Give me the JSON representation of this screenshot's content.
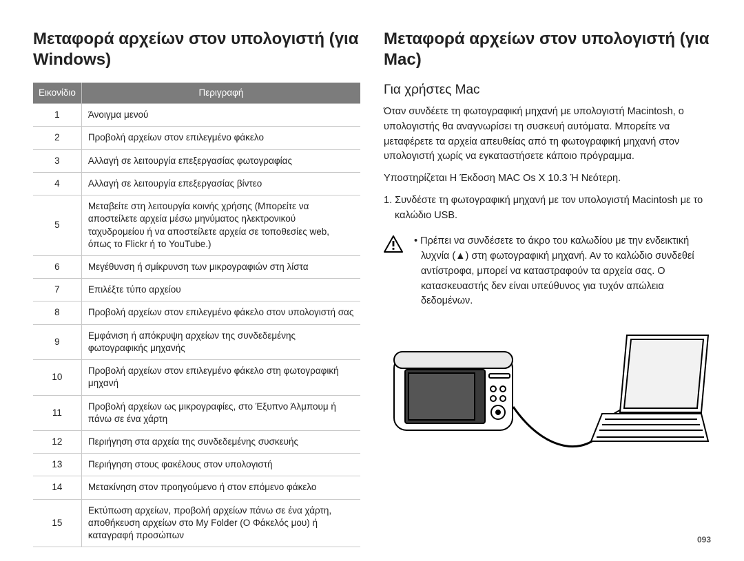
{
  "page_number": "093",
  "left": {
    "heading": "Μεταφορά αρχείων στον υπολογιστή (για Windows)",
    "table": {
      "headers": {
        "icon": "Εικονίδιο",
        "desc": "Περιγραφή"
      },
      "rows": [
        {
          "n": "1",
          "d": "Άνοιγμα μενού"
        },
        {
          "n": "2",
          "d": "Προβολή αρχείων στον επιλεγμένο φάκελο"
        },
        {
          "n": "3",
          "d": "Αλλαγή σε λειτουργία επεξεργασίας φωτογραφίας"
        },
        {
          "n": "4",
          "d": "Αλλαγή σε λειτουργία επεξεργασίας βίντεο"
        },
        {
          "n": "5",
          "d": "Μεταβείτε στη λειτουργία κοινής χρήσης (Μπορείτε να αποστείλετε αρχεία μέσω μηνύματος ηλεκτρονικού ταχυδρομείου ή να αποστείλετε αρχεία σε τοποθεσίες web, όπως το Flickr ή το YouTube.)"
        },
        {
          "n": "6",
          "d": "Μεγέθυνση ή σμίκρυνση των μικρογραφιών στη λίστα"
        },
        {
          "n": "7",
          "d": "Επιλέξτε τύπο αρχείου"
        },
        {
          "n": "8",
          "d": "Προβολή αρχείων στον επιλεγμένο φάκελο στον υπολογιστή σας"
        },
        {
          "n": "9",
          "d": "Εμφάνιση ή απόκρυψη αρχείων της συνδεδεμένης φωτογραφικής μηχανής"
        },
        {
          "n": "10",
          "d": "Προβολή αρχείων στον επιλεγμένο φάκελο στη φωτογραφική μηχανή"
        },
        {
          "n": "11",
          "d": "Προβολή αρχείων ως μικρογραφίες, στο Έξυπνο Άλμπουμ ή πάνω σε ένα χάρτη"
        },
        {
          "n": "12",
          "d": "Περιήγηση στα αρχεία της συνδεδεμένης συσκευής"
        },
        {
          "n": "13",
          "d": "Περιήγηση στους φακέλους στον υπολογιστή"
        },
        {
          "n": "14",
          "d": "Μετακίνηση στον προηγούμενο ή στον επόμενο φάκελο"
        },
        {
          "n": "15",
          "d": "Εκτύπωση αρχείων, προβολή αρχείων πάνω σε ένα χάρτη, αποθήκευση αρχείων στο My Folder (Ο Φάκελός μου) ή καταγραφή προσώπων"
        }
      ]
    }
  },
  "right": {
    "heading": "Μεταφορά αρχείων στον υπολογιστή (για Mac)",
    "subheading": "Για χρήστες Mac",
    "para1": "Όταν συνδέετε τη φωτογραφική μηχανή με υπολογιστή Macintosh, ο υπολογιστής θα αναγνωρίσει τη συσκευή αυτόματα. Μπορείτε να μεταφέρετε τα αρχεία απευθείας από τη φωτογραφική μηχανή στον υπολογιστή χωρίς να εγκαταστήσετε κάποιο πρόγραμμα.",
    "para2": "Υποστηρίζεται Η Έκδοση MAC Os X 10.3 Ή Νεότερη.",
    "step1": "1. Συνδέστε τη φωτογραφική μηχανή με τον υπολογιστή Macintosh με το καλώδιο USB.",
    "warning": "Πρέπει να συνδέσετε το άκρο του καλωδίου με την ενδεικτική λυχνία (▲) στη φωτογραφική μηχανή. Αν το καλώδιο συνδεθεί αντίστροφα, μπορεί να καταστραφούν τα αρχεία σας. Ο κατασκευαστής δεν είναι υπεύθυνος για τυχόν απώλεια δεδομένων."
  },
  "style": {
    "header_bg": "#7c7c7c",
    "header_fg": "#ffffff",
    "rule": "#c9c9c9",
    "text": "#222222",
    "title_fontsize": 24,
    "body_fontsize": 14.5,
    "table_fontsize": 13.5
  }
}
